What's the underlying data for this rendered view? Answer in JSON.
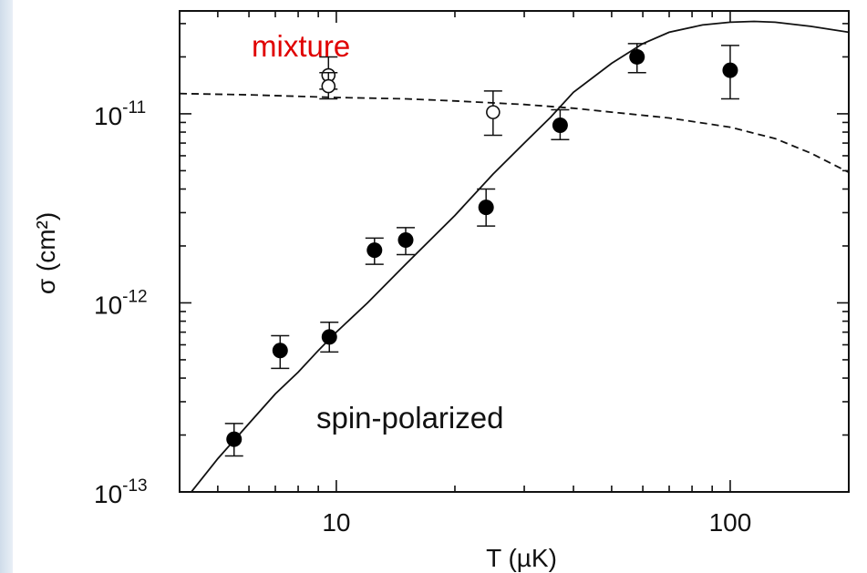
{
  "chart_data": {
    "type": "scatter",
    "title": "",
    "xlabel": "T (µK)",
    "ylabel": "σ (cm²)",
    "xscale": "log",
    "yscale": "log",
    "xlim": [
      4,
      200
    ],
    "ylim": [
      1e-13,
      3.5e-11
    ],
    "x_ticks": [
      {
        "value": 10,
        "label": "10"
      },
      {
        "value": 100,
        "label": "100"
      }
    ],
    "y_ticks": [
      {
        "value": 1e-13,
        "base": "10",
        "exp": "-13"
      },
      {
        "value": 1e-12,
        "base": "10",
        "exp": "-12"
      },
      {
        "value": 1e-11,
        "base": "10",
        "exp": "-11"
      }
    ],
    "annotations": {
      "mixture": "mixture",
      "spin_polarized": "spin-polarized",
      "mixture_color": "#e00000"
    },
    "series": [
      {
        "marker": "filled-circle",
        "points": [
          {
            "x": 5.5,
            "y": 1.9e-13,
            "ylo": 1.55e-13,
            "yhi": 2.3e-13
          },
          {
            "x": 7.2,
            "y": 5.6e-13,
            "ylo": 4.5e-13,
            "yhi": 6.7e-13
          },
          {
            "x": 9.6,
            "y": 6.6e-13,
            "ylo": 5.5e-13,
            "yhi": 7.9e-13
          },
          {
            "x": 12.5,
            "y": 1.9e-12,
            "ylo": 1.6e-12,
            "yhi": 2.2e-12
          },
          {
            "x": 15.0,
            "y": 2.15e-12,
            "ylo": 1.8e-12,
            "yhi": 2.5e-12
          },
          {
            "x": 24.0,
            "y": 3.2e-12,
            "ylo": 2.55e-12,
            "yhi": 4e-12
          },
          {
            "x": 37.0,
            "y": 8.7e-12,
            "ylo": 7.3e-12,
            "yhi": 1.05e-11
          },
          {
            "x": 58.0,
            "y": 2e-11,
            "ylo": 1.65e-11,
            "yhi": 2.35e-11
          },
          {
            "x": 100.0,
            "y": 1.7e-11,
            "ylo": 1.2e-11,
            "yhi": 2.3e-11
          }
        ]
      },
      {
        "marker": "open-circle",
        "points": [
          {
            "x": 9.55,
            "y": 1.6e-11,
            "ylo": 1.35e-11,
            "yhi": 2e-11
          },
          {
            "x": 9.55,
            "y": 1.4e-11,
            "ylo": 1.2e-11,
            "yhi": 1.65e-11
          },
          {
            "x": 25.0,
            "y": 1.02e-11,
            "ylo": 7.7e-12,
            "yhi": 1.32e-11
          }
        ]
      },
      {
        "line": "solid",
        "points": [
          {
            "x": 4.2,
            "y": 9.5e-14
          },
          {
            "x": 5,
            "y": 1.5e-13
          },
          {
            "x": 6,
            "y": 2.3e-13
          },
          {
            "x": 7,
            "y": 3.3e-13
          },
          {
            "x": 8,
            "y": 4.3e-13
          },
          {
            "x": 9,
            "y": 5.6e-13
          },
          {
            "x": 10,
            "y": 7e-13
          },
          {
            "x": 12,
            "y": 1e-12
          },
          {
            "x": 15,
            "y": 1.6e-12
          },
          {
            "x": 20,
            "y": 2.9e-12
          },
          {
            "x": 25,
            "y": 4.8e-12
          },
          {
            "x": 30,
            "y": 7e-12
          },
          {
            "x": 35,
            "y": 9.6e-12
          },
          {
            "x": 40,
            "y": 1.3e-11
          },
          {
            "x": 50,
            "y": 1.85e-11
          },
          {
            "x": 60,
            "y": 2.35e-11
          },
          {
            "x": 70,
            "y": 2.7e-11
          },
          {
            "x": 85,
            "y": 2.95e-11
          },
          {
            "x": 100,
            "y": 3.05e-11
          },
          {
            "x": 115,
            "y": 3.08e-11
          },
          {
            "x": 130,
            "y": 3.05e-11
          },
          {
            "x": 160,
            "y": 2.9e-11
          },
          {
            "x": 200,
            "y": 2.7e-11
          }
        ]
      },
      {
        "line": "dashed",
        "points": [
          {
            "x": 4.0,
            "y": 1.28e-11
          },
          {
            "x": 6,
            "y": 1.26e-11
          },
          {
            "x": 10,
            "y": 1.22e-11
          },
          {
            "x": 15,
            "y": 1.2e-11
          },
          {
            "x": 20,
            "y": 1.17e-11
          },
          {
            "x": 30,
            "y": 1.12e-11
          },
          {
            "x": 40,
            "y": 1.07e-11
          },
          {
            "x": 50,
            "y": 1.02e-11
          },
          {
            "x": 70,
            "y": 9.5e-12
          },
          {
            "x": 100,
            "y": 8.5e-12
          },
          {
            "x": 130,
            "y": 7.4e-12
          },
          {
            "x": 160,
            "y": 6.2e-12
          },
          {
            "x": 200,
            "y": 4.9e-12
          }
        ]
      }
    ]
  }
}
